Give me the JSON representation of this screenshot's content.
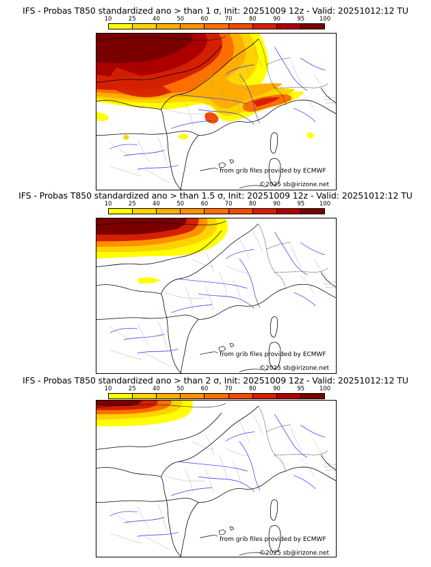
{
  "colorbar": {
    "ticks": [
      "10",
      "25",
      "40",
      "50",
      "60",
      "70",
      "80",
      "90",
      "95",
      "100"
    ],
    "colors": [
      "#ffff00",
      "#ffd200",
      "#ffae00",
      "#ff9000",
      "#ff6e00",
      "#f24a00",
      "#d42000",
      "#ac0000",
      "#7a0000"
    ]
  },
  "credit": {
    "source": "from grib files provided by ECMWF",
    "copyright": "©2025 sb@irizone.net"
  },
  "panels": [
    {
      "title": "IFS - Probas T850  standardized ano > than 1 σ, Init: 20251009 12z - Valid: 20251012:12 TU",
      "threshold_sigma": "1"
    },
    {
      "title": "IFS - Probas T850  standardized ano > than 1.5 σ, Init: 20251009 12z - Valid: 20251012:12 TU",
      "threshold_sigma": "1.5"
    },
    {
      "title": "IFS - Probas T850  standardized ano > than 2 σ, Init: 20251009 12z - Valid: 20251012:12 TU",
      "threshold_sigma": "2"
    }
  ]
}
